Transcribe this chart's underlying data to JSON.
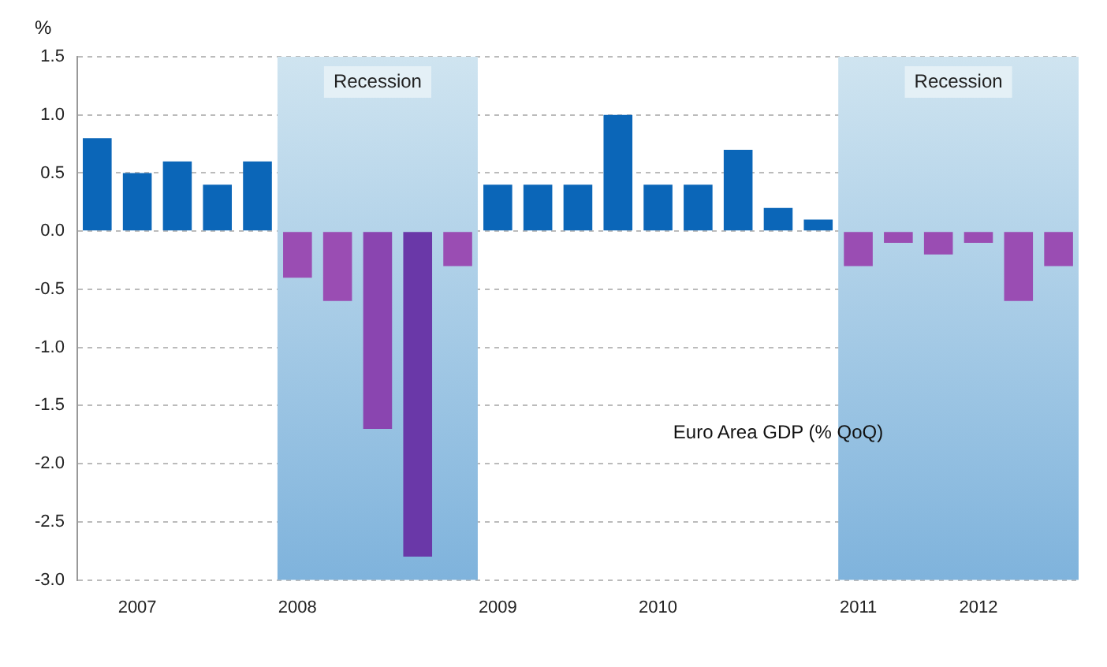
{
  "chart_data": {
    "type": "bar",
    "ylabel": "%",
    "annotations": [
      "Euro Area GDP (% QoQ)",
      "Recession"
    ],
    "categories": [
      null,
      "2007",
      null,
      null,
      null,
      "2008",
      null,
      null,
      null,
      null,
      "2009",
      null,
      null,
      null,
      "2010",
      null,
      null,
      null,
      null,
      "2011",
      null,
      null,
      "2012",
      null,
      null
    ],
    "values": [
      0.8,
      0.5,
      0.6,
      0.4,
      0.6,
      -0.4,
      -0.6,
      -1.7,
      -2.8,
      -0.3,
      0.4,
      0.4,
      0.4,
      1.0,
      0.4,
      0.4,
      0.7,
      0.2,
      0.1,
      -0.3,
      -0.1,
      -0.2,
      -0.1,
      -0.6,
      -0.3
    ],
    "colors": [
      "#0b66b8",
      "#0b66b8",
      "#0b66b8",
      "#0b66b8",
      "#0b66b8",
      "#9a4db3",
      "#9a4db3",
      "#8a45b0",
      "#6a38a8",
      "#9a4db3",
      "#0b66b8",
      "#0b66b8",
      "#0b66b8",
      "#0b66b8",
      "#0b66b8",
      "#0b66b8",
      "#0b66b8",
      "#0b66b8",
      "#0b66b8",
      "#9a4db3",
      "#9a4db3",
      "#9a4db3",
      "#9a4db3",
      "#9a4db3",
      "#9a4db3"
    ],
    "ylim": [
      -3.0,
      1.5
    ],
    "yticks": [
      {
        "value": -3.0,
        "label": "-3.0"
      },
      {
        "value": -2.5,
        "label": "-2.5"
      },
      {
        "value": -2.0,
        "label": "-2.0"
      },
      {
        "value": -1.5,
        "label": "-1.5"
      },
      {
        "value": -1.0,
        "label": "-1.0"
      },
      {
        "value": -0.5,
        "label": "-0.5"
      },
      {
        "value": 0,
        "label": "0.0"
      },
      {
        "value": 0.5,
        "label": "0.5"
      },
      {
        "value": 1.0,
        "label": "1.0"
      },
      {
        "value": 1.5,
        "label": "1.5"
      }
    ],
    "bands": [
      {
        "axis": "x",
        "from": "2008",
        "to": "2009",
        "label": "Recession",
        "color": "#cfe4f0"
      }
    ],
    "grid": "y",
    "legend": false
  }
}
